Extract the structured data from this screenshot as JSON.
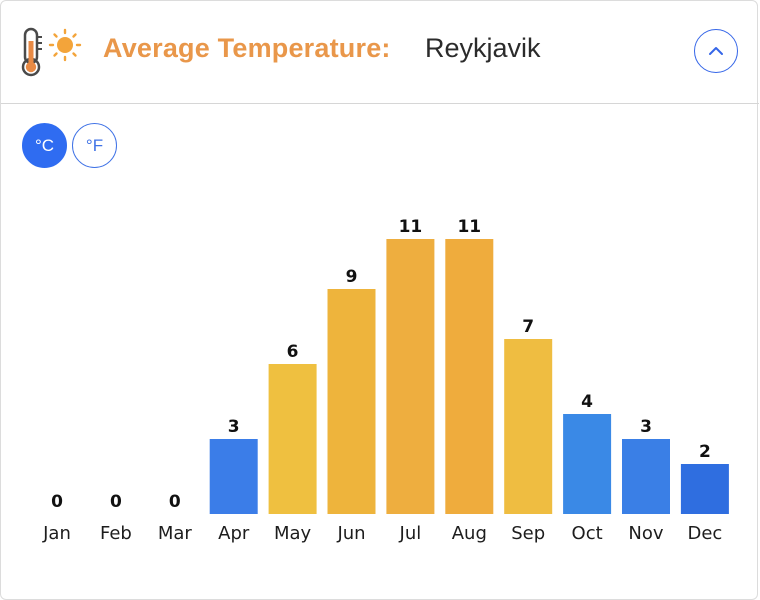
{
  "header": {
    "title_label": "Average Temperature:",
    "title_city": "Reykjavik",
    "icon": "thermometer-sun-icon",
    "collapse_icon": "chevron-up-icon"
  },
  "units": {
    "celsius_label": "°C",
    "fahrenheit_label": "°F",
    "selected": "celsius"
  },
  "colors": {
    "title": "#e9974a",
    "accent": "#2f6cf1",
    "cold_bar": "#3b7fe6",
    "warm_bar": "#f0b13c",
    "hot_bar": "#eeae3f"
  },
  "chart_data": {
    "type": "bar",
    "categories": [
      "Jan",
      "Feb",
      "Mar",
      "Apr",
      "May",
      "Jun",
      "Jul",
      "Aug",
      "Sep",
      "Oct",
      "Nov",
      "Dec"
    ],
    "values": [
      0,
      0,
      0,
      3,
      6,
      9,
      11,
      11,
      7,
      4,
      3,
      2
    ],
    "bar_colors": [
      "#3b7fe6",
      "#3b7fe6",
      "#3b7fe6",
      "#3b7de8",
      "#efc040",
      "#eeb43c",
      "#eeae3f",
      "#efac3d",
      "#efbd41",
      "#3a89e6",
      "#3a7fe6",
      "#2f6ee0"
    ],
    "ylim": [
      0,
      11
    ],
    "grid": false,
    "data_labels": true
  }
}
